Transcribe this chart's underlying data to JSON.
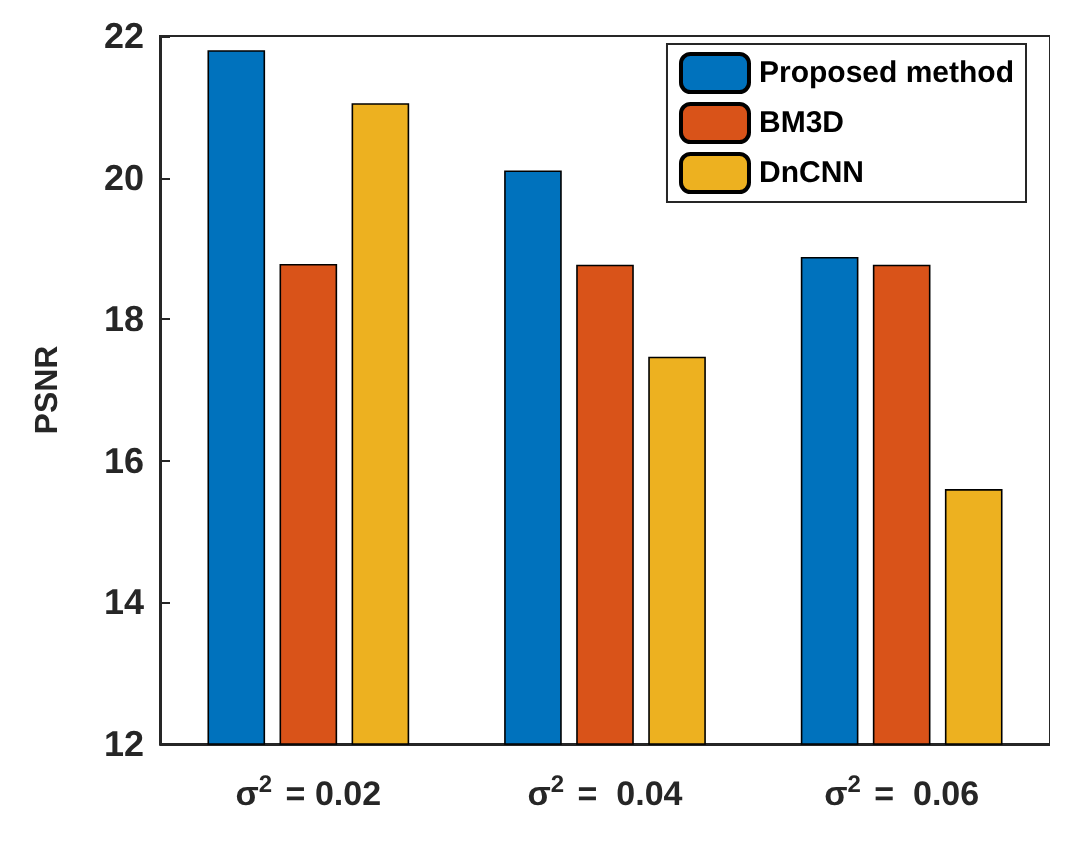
{
  "chart_data": {
    "type": "bar",
    "ylabel": "PSNR",
    "categories": [
      "σ$^{2}$ = 0.02",
      "σ$^{2}$ =  0.04",
      "σ$^{2}$ =  0.06"
    ],
    "series": [
      {
        "name": "Proposed method",
        "color": "#0072bd",
        "values": [
          21.8,
          20.1,
          18.88
        ]
      },
      {
        "name": "BM3D",
        "color": "#d95319",
        "values": [
          18.78,
          18.77,
          18.77
        ]
      },
      {
        "name": "DnCNN",
        "color": "#edb120",
        "values": [
          21.05,
          17.47,
          15.6
        ]
      }
    ],
    "ylim": [
      12,
      22
    ],
    "yticks": [
      12,
      14,
      16,
      18,
      20,
      22
    ],
    "grid": false,
    "legend": "top right"
  }
}
